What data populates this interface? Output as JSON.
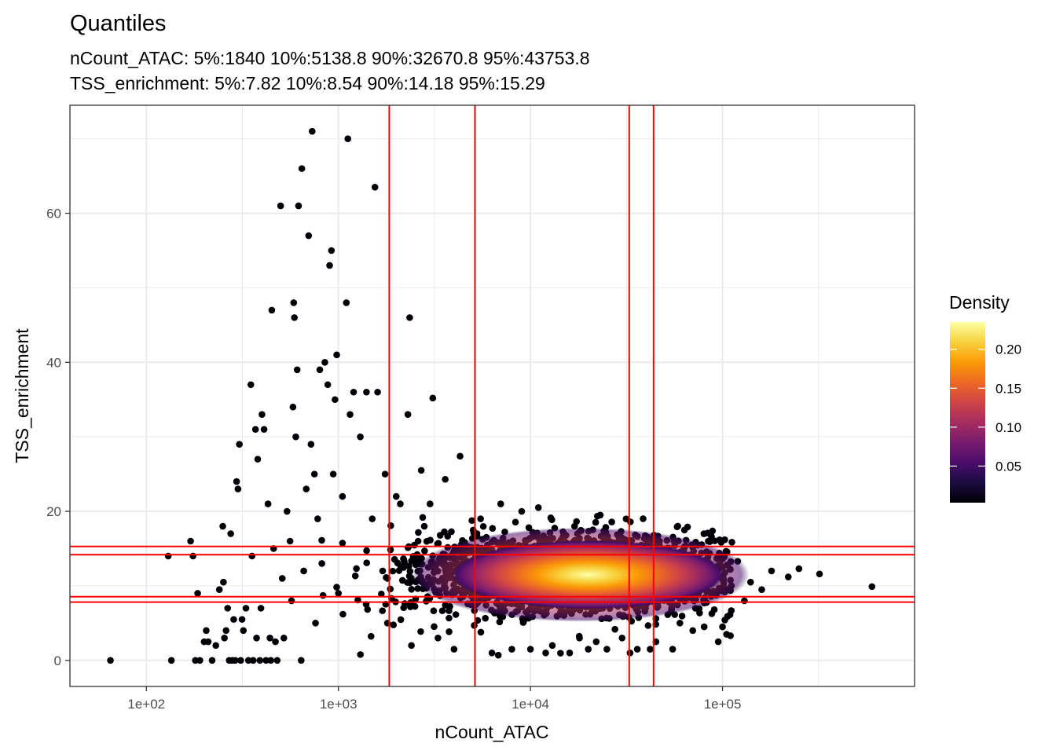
{
  "chart_data": {
    "type": "scatter",
    "title": "Quantiles",
    "subtitle": [
      "nCount_ATAC: 5%:1840 10%:5138.8 90%:32670.8 95%:43753.8",
      "TSS_enrichment: 5%:7.82 10%:8.54 90%:14.18 95%:15.29"
    ],
    "xlabel": "nCount_ATAC",
    "ylabel": "TSS_enrichment",
    "x_scale": "log10",
    "xlim": [
      40,
      1000000
    ],
    "ylim": [
      -3.5,
      74.5
    ],
    "x_ticks": [
      100,
      1000,
      10000,
      100000
    ],
    "x_tick_labels": [
      "1e+02",
      "1e+03",
      "1e+04",
      "1e+05"
    ],
    "y_ticks": [
      0,
      20,
      40,
      60
    ],
    "y_tick_labels": [
      "0",
      "20",
      "40",
      "60"
    ],
    "grid": true,
    "quantile_lines": {
      "x": [
        1840,
        5138.8,
        32670.8,
        43753.8
      ],
      "y": [
        7.82,
        8.54,
        14.18,
        15.29
      ],
      "color": "#ff0000"
    },
    "points": [
      [
        65,
        0
      ],
      [
        130,
        14
      ],
      [
        135,
        0
      ],
      [
        170,
        16
      ],
      [
        175,
        14
      ],
      [
        180,
        0
      ],
      [
        185,
        9
      ],
      [
        190,
        0
      ],
      [
        200,
        2.5
      ],
      [
        205,
        4
      ],
      [
        210,
        2.5
      ],
      [
        220,
        0
      ],
      [
        230,
        2
      ],
      [
        240,
        9.5
      ],
      [
        250,
        18
      ],
      [
        252,
        10.5
      ],
      [
        255,
        3
      ],
      [
        260,
        4
      ],
      [
        265,
        7
      ],
      [
        270,
        0
      ],
      [
        275,
        17
      ],
      [
        280,
        0
      ],
      [
        285,
        5.5
      ],
      [
        290,
        0
      ],
      [
        295,
        24
      ],
      [
        300,
        23
      ],
      [
        305,
        29
      ],
      [
        310,
        0
      ],
      [
        315,
        5.5
      ],
      [
        320,
        4
      ],
      [
        330,
        7
      ],
      [
        340,
        0
      ],
      [
        350,
        37
      ],
      [
        355,
        14
      ],
      [
        360,
        0
      ],
      [
        370,
        31
      ],
      [
        375,
        3
      ],
      [
        380,
        27
      ],
      [
        390,
        0
      ],
      [
        395,
        7
      ],
      [
        400,
        33
      ],
      [
        410,
        31
      ],
      [
        420,
        0
      ],
      [
        430,
        21
      ],
      [
        440,
        3
      ],
      [
        445,
        0
      ],
      [
        450,
        47
      ],
      [
        460,
        15
      ],
      [
        470,
        2.5
      ],
      [
        480,
        0
      ],
      [
        500,
        61
      ],
      [
        510,
        11
      ],
      [
        520,
        3
      ],
      [
        540,
        20
      ],
      [
        560,
        16
      ],
      [
        570,
        8
      ],
      [
        580,
        34
      ],
      [
        585,
        48
      ],
      [
        590,
        46
      ],
      [
        600,
        30
      ],
      [
        610,
        39
      ],
      [
        620,
        61
      ],
      [
        640,
        0
      ],
      [
        645,
        66
      ],
      [
        660,
        12
      ],
      [
        680,
        23
      ],
      [
        700,
        57
      ],
      [
        720,
        29
      ],
      [
        730,
        71
      ],
      [
        750,
        25
      ],
      [
        760,
        5
      ],
      [
        780,
        19
      ],
      [
        800,
        39
      ],
      [
        820,
        13
      ],
      [
        850,
        40
      ],
      [
        880,
        37
      ],
      [
        900,
        53
      ],
      [
        920,
        55
      ],
      [
        940,
        25
      ],
      [
        960,
        35
      ],
      [
        980,
        41
      ],
      [
        1000,
        9
      ],
      [
        1050,
        22
      ],
      [
        1100,
        48
      ],
      [
        1120,
        70
      ],
      [
        1150,
        33
      ],
      [
        1200,
        36
      ],
      [
        1300,
        30
      ],
      [
        1400,
        36
      ],
      [
        1500,
        19
      ],
      [
        1550,
        63.5
      ],
      [
        1600,
        36
      ],
      [
        1700,
        12
      ],
      [
        1750,
        25
      ],
      [
        1800,
        5
      ],
      [
        2000,
        22
      ],
      [
        2100,
        21
      ],
      [
        2300,
        33
      ],
      [
        2350,
        46
      ],
      [
        2400,
        2
      ],
      [
        2600,
        16
      ],
      [
        2700,
        25.5
      ],
      [
        2800,
        18
      ],
      [
        3000,
        21
      ],
      [
        3100,
        35.2
      ],
      [
        3300,
        3
      ],
      [
        3600,
        24.3
      ],
      [
        4000,
        1.5
      ],
      [
        4300,
        27.4
      ],
      [
        5500,
        19
      ],
      [
        6300,
        1
      ],
      [
        6800,
        0.7
      ],
      [
        7000,
        21
      ],
      [
        8000,
        1.5
      ],
      [
        9000,
        20
      ],
      [
        10000,
        1.5
      ],
      [
        11000,
        20.5
      ],
      [
        12000,
        1
      ],
      [
        13000,
        2
      ],
      [
        16000,
        1
      ],
      [
        18000,
        3
      ],
      [
        20000,
        1.5
      ],
      [
        22000,
        2.5
      ],
      [
        25000,
        1.5
      ],
      [
        30000,
        3
      ],
      [
        33000,
        1
      ],
      [
        36000,
        1.5
      ],
      [
        40000,
        15.5
      ],
      [
        42000,
        1.5
      ],
      [
        44000,
        16.8
      ],
      [
        45000,
        2.5
      ],
      [
        55000,
        1.5
      ],
      [
        60000,
        5
      ],
      [
        70000,
        4
      ],
      [
        85000,
        12
      ],
      [
        90000,
        9
      ],
      [
        95000,
        2.5
      ],
      [
        100000,
        4.5
      ],
      [
        105000,
        3.5
      ],
      [
        110000,
        3.3
      ],
      [
        120000,
        13.3
      ],
      [
        130000,
        8
      ],
      [
        140000,
        10.5
      ],
      [
        160000,
        9.5
      ],
      [
        180000,
        12
      ],
      [
        220000,
        11.2
      ],
      [
        250000,
        12.3
      ],
      [
        320000,
        11.6
      ],
      [
        600000,
        9.9
      ]
    ],
    "density_peak": {
      "x": 20000,
      "y": 11.5
    },
    "legend": {
      "title": "Density",
      "placement": "right",
      "range": [
        0.003,
        0.235
      ],
      "breaks": [
        0.05,
        0.1,
        0.15,
        0.2
      ],
      "labels": [
        "0.05",
        "0.10",
        "0.15",
        "0.20"
      ],
      "colors": [
        "#000004",
        "#1b0c41",
        "#4a0c6b",
        "#781c6d",
        "#a52c60",
        "#cf4446",
        "#ed6925",
        "#fb9b06",
        "#f7d13d",
        "#fcffa4"
      ]
    }
  }
}
